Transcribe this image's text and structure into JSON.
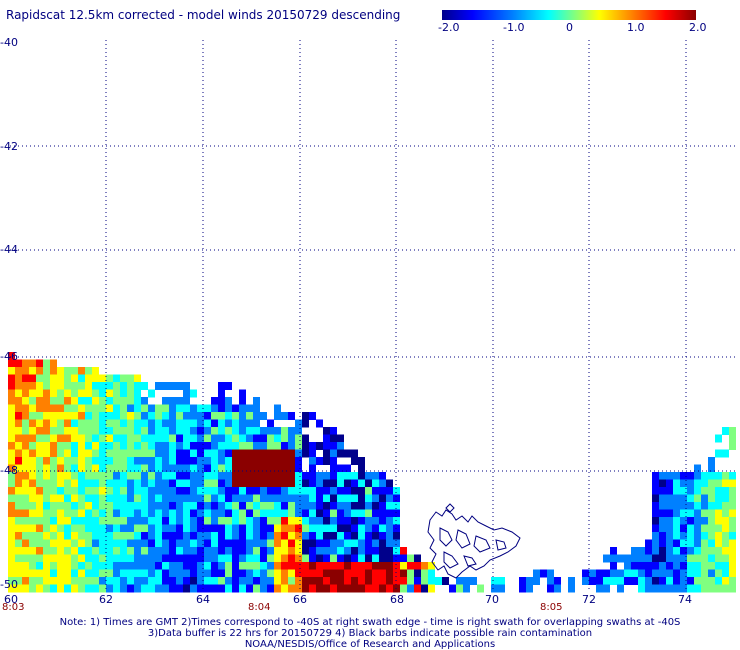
{
  "title": "Rapidscat 12.5km corrected - model winds 20150729 descending",
  "colorbar": {
    "labels": [
      "-2.0",
      "-1.0",
      "0",
      "1.0",
      "2.0"
    ],
    "colors": [
      "#00008b",
      "#0000ff",
      "#0080ff",
      "#00ffff",
      "#80ff80",
      "#ffff00",
      "#ff8000",
      "#ff0000",
      "#8b0000"
    ]
  },
  "lat_labels": [
    "-40",
    "-42",
    "-44",
    "-46",
    "-48",
    "-50"
  ],
  "lon_labels": [
    "60",
    "62",
    "64",
    "66",
    "68",
    "70",
    "72",
    "74"
  ],
  "time_labels": [
    "8:03",
    "8:04",
    "8:05"
  ],
  "notes": [
    "Note: 1) Times are GMT 2)Times correspond to -40S at right swath edge - time is right swath for overlapping swaths at -40S",
    "3)Data buffer is 22 hrs for 20150729 4) Black barbs indicate possible rain contamination",
    "NOAA/NESDIS/Office of Research and Applications"
  ],
  "map_colors": {
    "grid": "#000080",
    "coast": "#000080"
  }
}
